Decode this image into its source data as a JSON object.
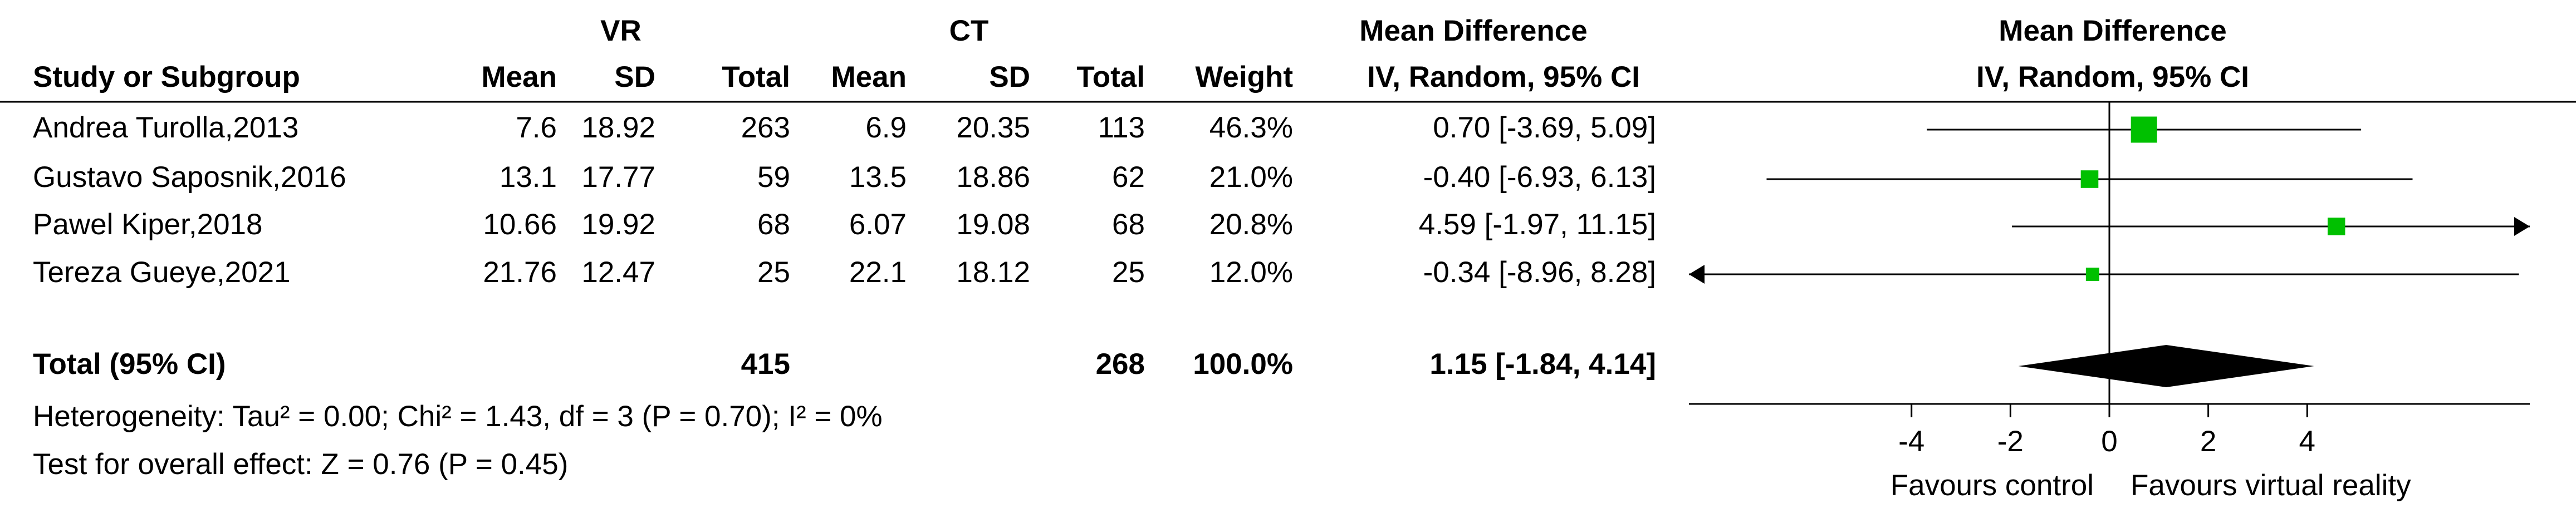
{
  "chart_data": {
    "type": "forest",
    "group_headers": [
      "VR",
      "CT"
    ],
    "columns": [
      "Study or Subgroup",
      "Mean",
      "SD",
      "Total",
      "Mean",
      "SD",
      "Total",
      "Weight"
    ],
    "effect_header": [
      "Mean Difference",
      "IV, Random, 95% CI"
    ],
    "plot_header": [
      "Mean Difference",
      "IV, Random, 95% CI"
    ],
    "studies": [
      {
        "name": "Andrea Turolla,2013",
        "cells": [
          "7.6",
          "18.92",
          "263",
          "6.9",
          "20.35",
          "113",
          "46.3%"
        ],
        "weight": 46.3,
        "md": 0.7,
        "lo": -3.69,
        "hi": 5.09,
        "ci_label": "0.70 [-3.69, 5.09]"
      },
      {
        "name": "Gustavo Saposnik,2016",
        "cells": [
          "13.1",
          "17.77",
          "59",
          "13.5",
          "18.86",
          "62",
          "21.0%"
        ],
        "weight": 21.0,
        "md": -0.4,
        "lo": -6.93,
        "hi": 6.13,
        "ci_label": "-0.40 [-6.93, 6.13]"
      },
      {
        "name": "Pawel Kiper,2018",
        "cells": [
          "10.66",
          "19.92",
          "68",
          "6.07",
          "19.08",
          "68",
          "20.8%"
        ],
        "weight": 20.8,
        "md": 4.59,
        "lo": -1.97,
        "hi": 11.15,
        "ci_label": "4.59 [-1.97, 11.15]"
      },
      {
        "name": "Tereza Gueye,2021",
        "cells": [
          "21.76",
          "12.47",
          "25",
          "22.1",
          "18.12",
          "25",
          "12.0%"
        ],
        "weight": 12.0,
        "md": -0.34,
        "lo": -8.96,
        "hi": 8.28,
        "ci_label": "-0.34 [-8.96, 8.28]"
      }
    ],
    "total": {
      "name": "Total (95% CI)",
      "cells": [
        "",
        "",
        "415",
        "",
        "",
        "268",
        "100.0%"
      ],
      "md": 1.15,
      "lo": -1.84,
      "hi": 4.14,
      "ci_label": "1.15 [-1.84, 4.14]"
    },
    "heterogeneity": "Heterogeneity: Tau² = 0.00; Chi² = 1.43, df = 3 (P = 0.70); I² = 0%",
    "overall_effect": "Test for overall effect: Z = 0.76 (P = 0.45)",
    "xlim": [
      -8.5,
      8.5
    ],
    "xticks": [
      -4,
      -2,
      0,
      2,
      4
    ],
    "favours_left": "Favours control",
    "favours_right": "Favours virtual reality",
    "marker_color": "#00c000"
  }
}
